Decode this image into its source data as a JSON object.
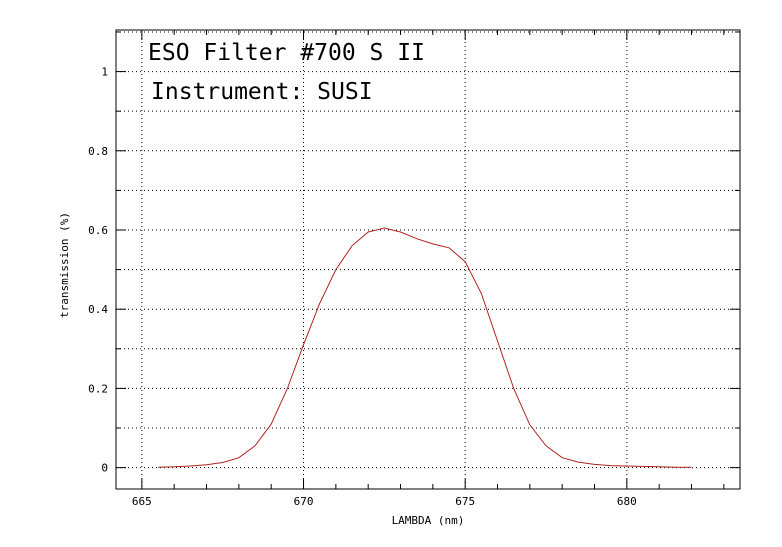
{
  "chart_data": {
    "type": "line",
    "title": "ESO Filter #700 S II",
    "subtitle": "Instrument: SUSI",
    "xlabel": "LAMBDA (nm)",
    "ylabel": "transmission (%)",
    "xlim": [
      664.2,
      683.5
    ],
    "ylim": [
      -0.054,
      1.105
    ],
    "xticks": [
      665,
      670,
      675,
      680
    ],
    "yticks": [
      0,
      0.2,
      0.4,
      0.6,
      0.8,
      1
    ],
    "x_tick_labels": [
      "665",
      "670",
      "675",
      "680"
    ],
    "y_tick_labels": [
      "0",
      "0.2",
      "0.4",
      "0.6",
      "0.8",
      "1"
    ],
    "grid": true,
    "series": [
      {
        "color": "#b22222",
        "x": [
          665.5,
          666.0,
          666.5,
          667.0,
          667.5,
          668.0,
          668.5,
          669.0,
          669.5,
          670.0,
          670.5,
          671.0,
          671.5,
          672.0,
          672.5,
          673.0,
          673.5,
          674.0,
          674.5,
          675.0,
          675.5,
          676.0,
          676.5,
          677.0,
          677.5,
          678.0,
          678.5,
          679.0,
          679.5,
          680.0,
          680.5,
          681.0,
          681.5,
          682.0
        ],
        "y": [
          0.001,
          0.002,
          0.004,
          0.007,
          0.013,
          0.025,
          0.055,
          0.11,
          0.2,
          0.31,
          0.415,
          0.5,
          0.56,
          0.595,
          0.605,
          0.595,
          0.578,
          0.565,
          0.555,
          0.52,
          0.44,
          0.32,
          0.2,
          0.108,
          0.055,
          0.025,
          0.014,
          0.008,
          0.005,
          0.004,
          0.003,
          0.002,
          0.001,
          0.001
        ]
      }
    ]
  }
}
